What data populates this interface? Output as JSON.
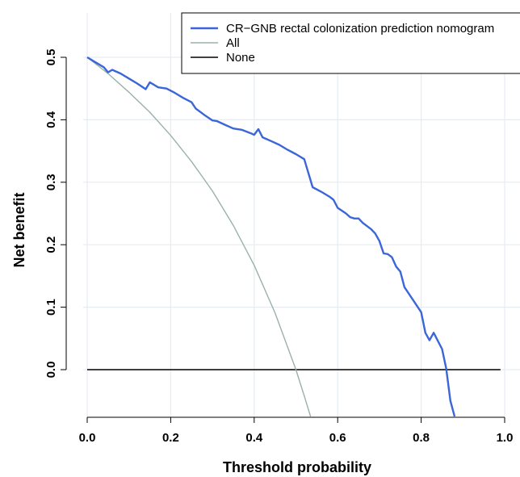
{
  "chart_data": {
    "type": "line",
    "xlabel": "Threshold probability",
    "ylabel": "Net benefit",
    "xlim": [
      0.0,
      1.0
    ],
    "ylim": [
      -0.075,
      0.515
    ],
    "x_ticks": [
      "0.0",
      "0.2",
      "0.4",
      "0.6",
      "0.8",
      "1.0"
    ],
    "y_ticks": [
      "0.0",
      "0.1",
      "0.2",
      "0.3",
      "0.4",
      "0.5"
    ],
    "grid": true,
    "legend_position": "top-right",
    "series": [
      {
        "name": "CR−GNB rectal colonization prediction nomogram",
        "color": "#3a66d9",
        "x": [
          0.0,
          0.02,
          0.04,
          0.05,
          0.06,
          0.08,
          0.1,
          0.12,
          0.14,
          0.15,
          0.17,
          0.19,
          0.21,
          0.23,
          0.25,
          0.26,
          0.28,
          0.3,
          0.31,
          0.33,
          0.35,
          0.37,
          0.39,
          0.4,
          0.41,
          0.42,
          0.44,
          0.46,
          0.48,
          0.5,
          0.52,
          0.54,
          0.56,
          0.58,
          0.59,
          0.6,
          0.62,
          0.63,
          0.64,
          0.65,
          0.66,
          0.68,
          0.69,
          0.7,
          0.71,
          0.72,
          0.73,
          0.74,
          0.75,
          0.76,
          0.78,
          0.8,
          0.81,
          0.82,
          0.83,
          0.84,
          0.85,
          0.86,
          0.87,
          0.88
        ],
        "y": [
          0.5,
          0.492,
          0.484,
          0.476,
          0.48,
          0.474,
          0.466,
          0.458,
          0.449,
          0.46,
          0.452,
          0.45,
          0.443,
          0.435,
          0.428,
          0.418,
          0.408,
          0.399,
          0.398,
          0.392,
          0.386,
          0.384,
          0.379,
          0.376,
          0.385,
          0.372,
          0.366,
          0.36,
          0.352,
          0.345,
          0.337,
          0.292,
          0.285,
          0.277,
          0.272,
          0.259,
          0.25,
          0.244,
          0.242,
          0.242,
          0.235,
          0.225,
          0.218,
          0.206,
          0.186,
          0.185,
          0.18,
          0.165,
          0.157,
          0.132,
          0.112,
          0.092,
          0.059,
          0.047,
          0.059,
          0.046,
          0.033,
          0.002,
          -0.05,
          -0.075
        ]
      },
      {
        "name": "All",
        "color": "#9ab2a8",
        "x": [
          0.0,
          0.05,
          0.1,
          0.15,
          0.2,
          0.25,
          0.3,
          0.35,
          0.4,
          0.45,
          0.5,
          0.52,
          0.535
        ],
        "y": [
          0.5,
          0.474,
          0.444,
          0.412,
          0.375,
          0.333,
          0.286,
          0.231,
          0.167,
          0.091,
          0.0,
          -0.042,
          -0.075
        ]
      },
      {
        "name": "None",
        "color": "#000000",
        "x": [
          0.0,
          0.99
        ],
        "y": [
          0.0,
          0.0
        ]
      }
    ]
  }
}
